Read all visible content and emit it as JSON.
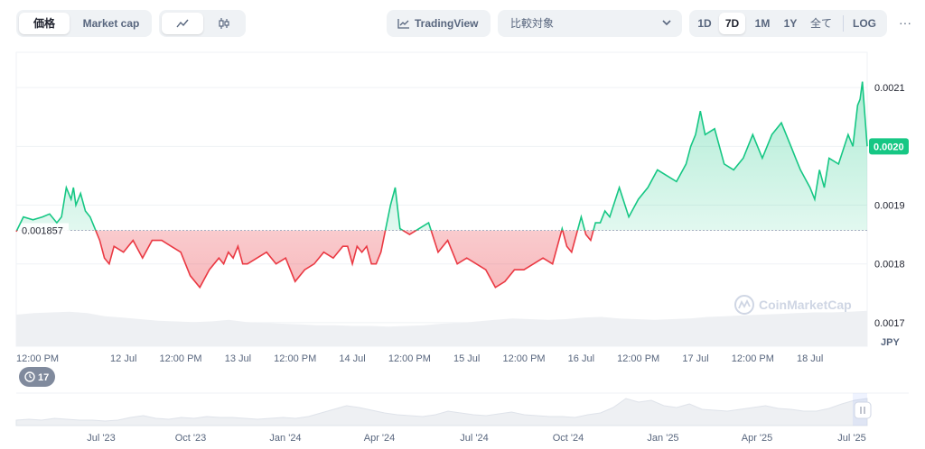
{
  "toolbar": {
    "metric_tabs": [
      "価格",
      "Market cap"
    ],
    "chart_type_icons": [
      "line-chart-icon",
      "candlestick-icon"
    ],
    "tradingview_label": "TradingView",
    "compare_placeholder": "比較対象",
    "range_tabs": [
      "1D",
      "7D",
      "1M",
      "1Y",
      "全て"
    ],
    "active_range": "7D",
    "log_label": "LOG",
    "more_label": "···"
  },
  "colors": {
    "up": "#16c784",
    "down": "#ea3943",
    "up_fill": "#16c784",
    "down_fill": "#ea3943",
    "grid": "#eff2f5",
    "text_muted": "#58667e"
  },
  "chart_data": {
    "type": "line",
    "y_unit": "JPY",
    "ylim": [
      0.00166,
      0.00216
    ],
    "y_ticks": [
      "0.0021",
      "0.0020",
      "0.0019",
      "0.0018",
      "0.0017"
    ],
    "y_tick_values": [
      0.0021,
      0.002,
      0.0019,
      0.0018,
      0.0017
    ],
    "baseline_label": "0.001857",
    "baseline": 0.001857,
    "current_price_label": "0.0020",
    "current_price": 0.002,
    "x_ticks": [
      "12:00 PM",
      "12 Jul",
      "12:00 PM",
      "13 Jul",
      "12:00 PM",
      "14 Jul",
      "12:00 PM",
      "15 Jul",
      "12:00 PM",
      "16 Jul",
      "12:00 PM",
      "17 Jul",
      "12:00 PM",
      "18 Jul"
    ],
    "x_tick_hours": [
      12,
      24,
      36,
      48,
      60,
      72,
      84,
      96,
      108,
      120,
      132,
      144,
      156,
      168
    ],
    "x_start_hour": 1.5,
    "x_end_hour": 180,
    "series": [
      {
        "hours": [
          1.5,
          3,
          5,
          7,
          8.5,
          10,
          11,
          12,
          13,
          13.5,
          14,
          15,
          16,
          17,
          18,
          19,
          20,
          21,
          22,
          24,
          26,
          28,
          30,
          32,
          34,
          36,
          38,
          40,
          42,
          44,
          45,
          46,
          47,
          48,
          49,
          50,
          52,
          54,
          56,
          58,
          60,
          62,
          64,
          66,
          68,
          70,
          71,
          72,
          73,
          74,
          75,
          76,
          77,
          78,
          79,
          80,
          81,
          82,
          84,
          86,
          88,
          90,
          92,
          94,
          96,
          98,
          100,
          102,
          104,
          106,
          108,
          110,
          112,
          114,
          116,
          117,
          118,
          119,
          120,
          121,
          122,
          123,
          124,
          125,
          126,
          128,
          130,
          132,
          134,
          136,
          138,
          140,
          142,
          143,
          144,
          145,
          146,
          148,
          150,
          152,
          154,
          156,
          158,
          160,
          162,
          164,
          165,
          166,
          168,
          169,
          170,
          171,
          172,
          174,
          176,
          177,
          178,
          178.5,
          179,
          180
        ],
        "values": [
          0.001855,
          0.00188,
          0.001875,
          0.00188,
          0.001885,
          0.00187,
          0.00188,
          0.00193,
          0.00191,
          0.00193,
          0.0019,
          0.00192,
          0.00189,
          0.00188,
          0.00186,
          0.00184,
          0.00181,
          0.0018,
          0.00183,
          0.00182,
          0.00184,
          0.00181,
          0.00184,
          0.00184,
          0.00183,
          0.00182,
          0.00178,
          0.00176,
          0.00179,
          0.00181,
          0.0018,
          0.00182,
          0.00181,
          0.00183,
          0.0018,
          0.0018,
          0.00181,
          0.00182,
          0.0018,
          0.00181,
          0.00177,
          0.00179,
          0.0018,
          0.00182,
          0.00181,
          0.00183,
          0.00183,
          0.0018,
          0.00183,
          0.00182,
          0.00183,
          0.0018,
          0.0018,
          0.00182,
          0.00186,
          0.0019,
          0.00193,
          0.00186,
          0.00185,
          0.00186,
          0.00187,
          0.00182,
          0.00184,
          0.0018,
          0.00181,
          0.0018,
          0.00179,
          0.00176,
          0.00177,
          0.00179,
          0.00179,
          0.0018,
          0.00181,
          0.0018,
          0.00186,
          0.00183,
          0.00182,
          0.00185,
          0.00188,
          0.00185,
          0.00184,
          0.00187,
          0.00187,
          0.00189,
          0.00188,
          0.00193,
          0.00188,
          0.00191,
          0.00193,
          0.00196,
          0.00195,
          0.00194,
          0.00197,
          0.002,
          0.00202,
          0.00206,
          0.00202,
          0.00203,
          0.00197,
          0.00196,
          0.00198,
          0.00202,
          0.00198,
          0.00202,
          0.00204,
          0.002,
          0.00198,
          0.00196,
          0.00193,
          0.00191,
          0.00196,
          0.00193,
          0.00198,
          0.00197,
          0.00202,
          0.002,
          0.00207,
          0.00208,
          0.00211,
          0.002
        ]
      }
    ],
    "volume": [
      42,
      44,
      45,
      46,
      44,
      40,
      38,
      36,
      34,
      33,
      32,
      33,
      35,
      32,
      31,
      30,
      29,
      28,
      28,
      27,
      27,
      26,
      27,
      28,
      30,
      31,
      33,
      35,
      37,
      36,
      35,
      36,
      38,
      39,
      37,
      36,
      35,
      36,
      37,
      39,
      40,
      41,
      42,
      43,
      44,
      45,
      45,
      46,
      47
    ],
    "overview": {
      "x_labels": [
        "Jul '23",
        "Oct '23",
        "Jan '24",
        "Apr '24",
        "Jul '24",
        "Oct '24",
        "Jan '25",
        "Apr '25",
        "Jul '25"
      ],
      "values": [
        6,
        7,
        6,
        8,
        7,
        6,
        6,
        5,
        6,
        9,
        11,
        8,
        7,
        9,
        8,
        10,
        9,
        9,
        8,
        7,
        8,
        9,
        8,
        10,
        14,
        18,
        22,
        20,
        17,
        14,
        12,
        11,
        10,
        12,
        16,
        14,
        12,
        11,
        13,
        15,
        12,
        11,
        10,
        10,
        9,
        12,
        14,
        20,
        30,
        26,
        28,
        22,
        20,
        24,
        18,
        17,
        16,
        18,
        20,
        22,
        19,
        18,
        16,
        16,
        19,
        24,
        28,
        30
      ]
    }
  },
  "alerts_badge": "17",
  "watermark": "CoinMarketCap"
}
